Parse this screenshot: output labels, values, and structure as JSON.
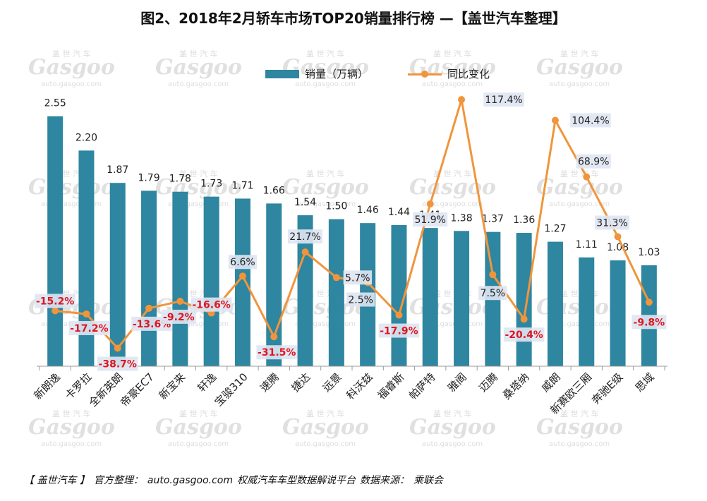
{
  "title": "图2、2018年2月轿车市场TOP20销量排行榜 —【盖世汽车整理】",
  "colors": {
    "bar": "#2e86a0",
    "line": "#f0953c",
    "negative_label": "#e0151f",
    "label_bg": "#dfe6f2"
  },
  "legend": {
    "bar_label": "销量（万辆）",
    "line_label": "同比变化"
  },
  "chart_data": {
    "type": "bar",
    "categories": [
      "新朗逸",
      "卡罗拉",
      "全新英朗",
      "帝豪EC7",
      "新宝来",
      "轩逸",
      "宝骏310",
      "速腾",
      "捷达",
      "远景",
      "科沃兹",
      "福睿斯",
      "帕萨特",
      "雅阁",
      "迈腾",
      "桑塔纳",
      "威朗",
      "新赛欧三厢",
      "奔驰E级",
      "思域"
    ],
    "series": [
      {
        "name": "销量（万辆）",
        "type": "bar",
        "values": [
          2.55,
          2.2,
          1.87,
          1.79,
          1.78,
          1.73,
          1.71,
          1.66,
          1.54,
          1.5,
          1.46,
          1.44,
          1.41,
          1.38,
          1.37,
          1.36,
          1.27,
          1.11,
          1.08,
          1.03
        ],
        "labels": [
          "2.55",
          "2.20",
          "1.87",
          "1.79",
          "1.78",
          "1.73",
          "1.71",
          "1.66",
          "1.54",
          "1.50",
          "1.46",
          "1.44",
          "1.41",
          "1.38",
          "1.37",
          "1.36",
          "1.27",
          "1.11",
          "1.08",
          "1.03"
        ]
      },
      {
        "name": "同比变化",
        "type": "line",
        "values": [
          -15.2,
          -17.2,
          -38.7,
          -13.6,
          -9.2,
          -16.6,
          6.6,
          -31.5,
          21.7,
          5.7,
          2.5,
          -17.9,
          51.9,
          117.4,
          7.5,
          -20.4,
          104.4,
          68.9,
          31.3,
          -9.8
        ],
        "labels": [
          "-15.2%",
          "-17.2%",
          "-38.7%",
          "-13.6%",
          "-9.2%",
          "-16.6%",
          "6.6%",
          "-31.5%",
          "21.7%",
          "5.7%",
          "2.5%",
          "-17.9%",
          "51.9%",
          "117.4%",
          "7.5%",
          "-20.4%",
          "104.4%",
          "68.9%",
          "31.3%",
          "-9.8%"
        ]
      }
    ],
    "bar_ylim": [
      0,
      2.8
    ],
    "line_ylim": [
      -50,
      125
    ],
    "grid": false,
    "legend_position": "top-center"
  },
  "footer": {
    "source": "【 盖世汽车 】",
    "org": "官方整理：",
    "site": "auto.gasgoo.com",
    "desc": "权威汽车车型数据解说平台",
    "src_label": "数据来源：",
    "src": "乘联会"
  },
  "watermark": {
    "cn": "盖 世 汽 车",
    "logo": "Gasgoo",
    "url": "auto.gasgoo.com"
  }
}
